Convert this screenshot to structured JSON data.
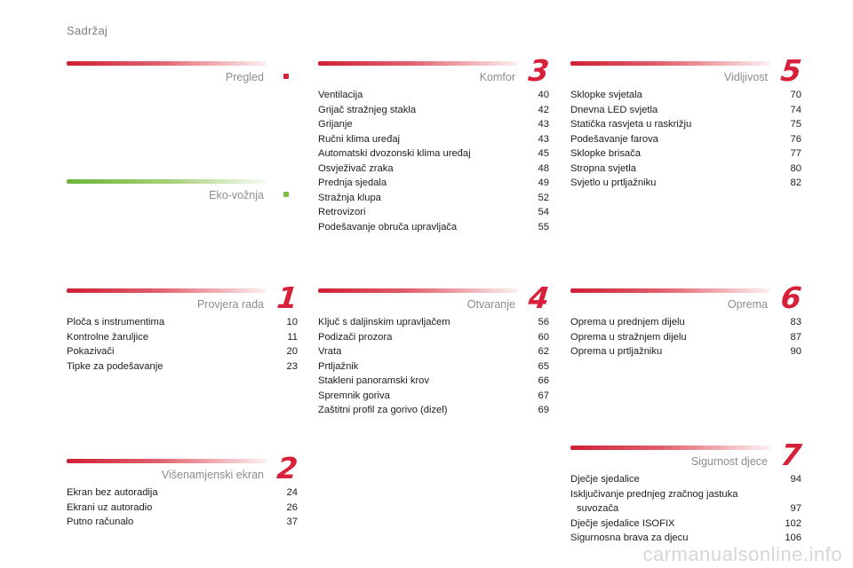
{
  "page_title": "Sadržaj",
  "sections": {
    "pregled": {
      "title": "Pregled",
      "bar_color": "#cf1f36",
      "dot_color": "#d7203a"
    },
    "eko": {
      "title": "Eko-vožnja",
      "bar_color": "#6cb43a",
      "dot_color": "#7cbf3f"
    },
    "s1": {
      "number": "1",
      "title": "Provjera rada",
      "items": [
        {
          "label": "Ploča s instrumentima",
          "page": "10"
        },
        {
          "label": "Kontrolne žaruljice",
          "page": "11"
        },
        {
          "label": "Pokazivači",
          "page": "20"
        },
        {
          "label": "Tipke za podešavanje",
          "page": "23"
        }
      ]
    },
    "s2": {
      "number": "2",
      "title": "Višenamjenski ekran",
      "items": [
        {
          "label": "Ekran bez autoradija",
          "page": "24"
        },
        {
          "label": "Ekrani uz autoradio",
          "page": "26"
        },
        {
          "label": "Putno računalo",
          "page": "37"
        }
      ]
    },
    "s3": {
      "number": "3",
      "title": "Komfor",
      "items": [
        {
          "label": "Ventilacija",
          "page": "40"
        },
        {
          "label": "Grijač stražnjeg stakla",
          "page": "42"
        },
        {
          "label": "Grijanje",
          "page": "43"
        },
        {
          "label": "Ručni klima uređaj",
          "page": "43"
        },
        {
          "label": "Automatski dvozonski klima uređaj",
          "page": "45"
        },
        {
          "label": "Osvježivač zraka",
          "page": "48"
        },
        {
          "label": "Prednja sjedala",
          "page": "49"
        },
        {
          "label": "Stražnja klupa",
          "page": "52"
        },
        {
          "label": "Retrovizori",
          "page": "54"
        },
        {
          "label": "Podešavanje obruča upravljača",
          "page": "55"
        }
      ]
    },
    "s4": {
      "number": "4",
      "title": "Otvaranje",
      "items": [
        {
          "label": "Ključ s daljinskim upravljačem",
          "page": "56"
        },
        {
          "label": "Podizači prozora",
          "page": "60"
        },
        {
          "label": "Vrata",
          "page": "62"
        },
        {
          "label": "Prtljažnik",
          "page": "65"
        },
        {
          "label": "Stakleni panoramski krov",
          "page": "66"
        },
        {
          "label": "Spremnik goriva",
          "page": "67"
        },
        {
          "label": "Zaštitni profil za gorivo (dizel)",
          "page": "69"
        }
      ]
    },
    "s5": {
      "number": "5",
      "title": "Vidljivost",
      "items": [
        {
          "label": "Sklopke svjetala",
          "page": "70"
        },
        {
          "label": "Dnevna LED svjetla",
          "page": "74"
        },
        {
          "label": "Statička rasvjeta u raskrižju",
          "page": "75"
        },
        {
          "label": "Podešavanje farova",
          "page": "76"
        },
        {
          "label": "Sklopke brisača",
          "page": "77"
        },
        {
          "label": "Stropna svjetla",
          "page": "80"
        },
        {
          "label": "Svjetlo u prtljažniku",
          "page": "82"
        }
      ]
    },
    "s6": {
      "number": "6",
      "title": "Oprema",
      "items": [
        {
          "label": "Oprema u prednjem dijelu",
          "page": "83"
        },
        {
          "label": "Oprema u stražnjem dijelu",
          "page": "87"
        },
        {
          "label": "Oprema u prtljažniku",
          "page": "90"
        }
      ]
    },
    "s7": {
      "number": "7",
      "title": "Sigurnost djece",
      "items": [
        {
          "label": "Dječje sjedalice",
          "page": "94"
        },
        {
          "label_line1": "Isključivanje prednjeg zračnog jastuka",
          "label_line2": "suvozača",
          "page": "97"
        },
        {
          "label": "Dječje sjedalice ISOFIX",
          "page": "102"
        },
        {
          "label": "Sigurnosna brava za djecu",
          "page": "106"
        }
      ]
    }
  },
  "watermark": "carmanualsonline.info"
}
